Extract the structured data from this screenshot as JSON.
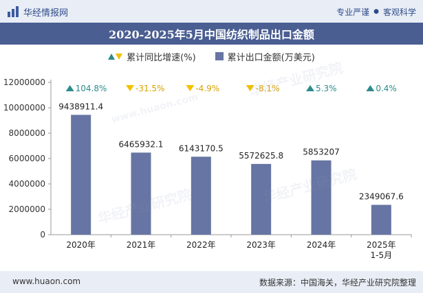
{
  "header": {
    "brand_name": "华经情报网",
    "tagline_left": "专业严谨",
    "tagline_right": "客观科学"
  },
  "chart_data": {
    "type": "bar",
    "title": "2020-2025年5月中国纺织制品出口金额",
    "categories": [
      "2020年",
      "2021年",
      "2022年",
      "2023年",
      "2024年",
      "2025年\n1-5月"
    ],
    "series": [
      {
        "name": "累计出口金额(万美元)",
        "values": [
          9438911.4,
          6465932.1,
          6143170.5,
          5572625.8,
          5853207,
          2349067.6
        ],
        "value_labels": [
          "9438911.4",
          "6465932.1",
          "6143170.5",
          "5572625.8",
          "5853207",
          "2349067.6"
        ],
        "color": "#6675a3"
      },
      {
        "name": "累计同比增速(%)",
        "values": [
          104.8,
          -31.5,
          -4.9,
          -8.1,
          5.3,
          0.4
        ],
        "value_labels": [
          "104.8%",
          "-31.5%",
          "-4.9%",
          "-8.1%",
          "5.3%",
          "0.4%"
        ],
        "up_color": "#2e8b8b",
        "down_color": "#f2c200"
      }
    ],
    "yaxis": {
      "ylim": [
        0,
        12000000
      ],
      "ticks": [
        "0",
        "2000000",
        "4000000",
        "6000000",
        "8000000",
        "10000000",
        "12000000"
      ]
    },
    "legend": {
      "position": "top-center"
    },
    "grid": false
  },
  "watermark": {
    "text": "华经产业研究院",
    "url": "www.huaon.com"
  },
  "footer": {
    "website": "www.huaon.com",
    "source": "数据来源：中国海关，华经产业研究院整理"
  }
}
